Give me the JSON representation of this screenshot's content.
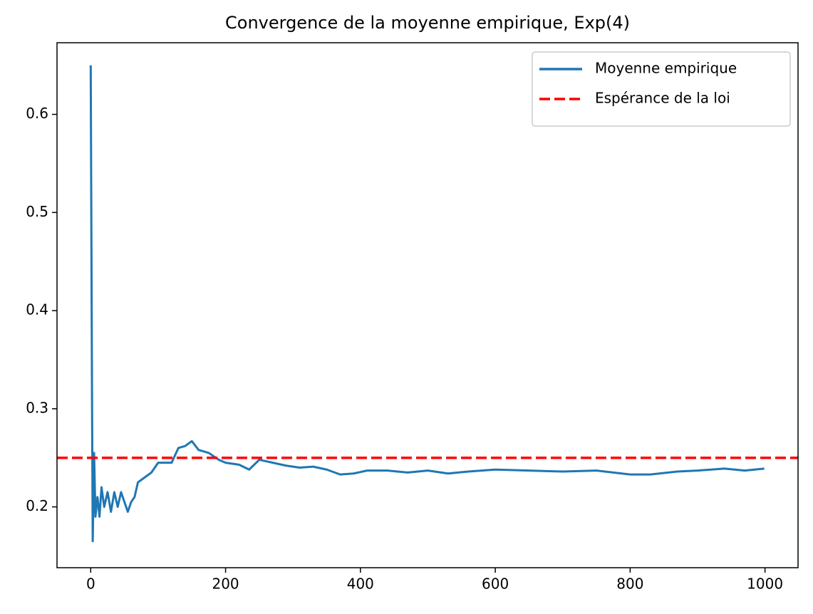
{
  "chart_data": {
    "type": "line",
    "title": "Convergence de la moyenne empirique, Exp(4)",
    "x": [
      0,
      2,
      3,
      5,
      7,
      10,
      13,
      16,
      20,
      25,
      30,
      35,
      40,
      45,
      50,
      55,
      60,
      65,
      70,
      80,
      90,
      100,
      110,
      120,
      130,
      140,
      150,
      160,
      175,
      190,
      200,
      220,
      235,
      250,
      270,
      290,
      310,
      330,
      350,
      370,
      390,
      410,
      440,
      470,
      500,
      530,
      560,
      600,
      650,
      700,
      750,
      800,
      830,
      870,
      900,
      940,
      970,
      999
    ],
    "series": [
      {
        "name": "Moyenne empirique",
        "color": "#1f77b4",
        "values": [
          0.65,
          0.3,
          0.165,
          0.255,
          0.19,
          0.21,
          0.19,
          0.22,
          0.2,
          0.215,
          0.195,
          0.215,
          0.2,
          0.215,
          0.205,
          0.195,
          0.205,
          0.21,
          0.225,
          0.23,
          0.235,
          0.245,
          0.245,
          0.245,
          0.26,
          0.262,
          0.267,
          0.258,
          0.255,
          0.248,
          0.245,
          0.243,
          0.238,
          0.248,
          0.245,
          0.242,
          0.24,
          0.241,
          0.238,
          0.233,
          0.234,
          0.237,
          0.237,
          0.235,
          0.237,
          0.234,
          0.236,
          0.238,
          0.237,
          0.236,
          0.237,
          0.233,
          0.233,
          0.236,
          0.237,
          0.239,
          0.237,
          0.239
        ]
      }
    ],
    "reference_line": {
      "name": "Espérance de la loi",
      "color": "#ff0000",
      "value": 0.25,
      "style": "dashed"
    },
    "xlim": [
      -50,
      1049
    ],
    "xticks": [
      0,
      200,
      400,
      600,
      800,
      1000
    ],
    "ylim": [
      0.138,
      0.673
    ],
    "yticks": [
      0.2,
      0.3,
      0.4,
      0.5,
      0.6
    ],
    "grid": false,
    "legend": "upper right"
  }
}
